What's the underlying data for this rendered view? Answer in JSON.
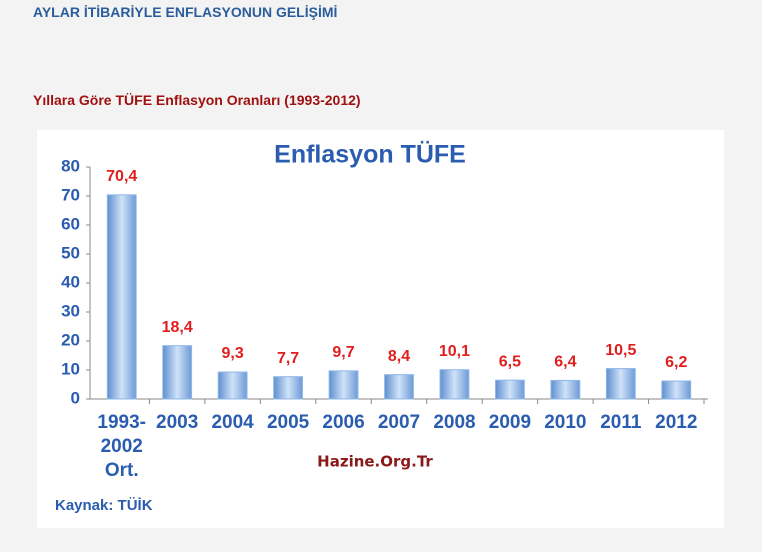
{
  "page": {
    "heading": "AYLAR İTİBARİYLE ENFLASYONUN GELİŞİMİ",
    "subheading": "Yıllara Göre TÜFE Enflasyon Oranları (1993-2012)"
  },
  "chart_data": {
    "type": "bar",
    "title": "Enflasyon TÜFE",
    "categories": [
      "1993-2002 Ort.",
      "2003",
      "2004",
      "2005",
      "2006",
      "2007",
      "2008",
      "2009",
      "2010",
      "2011",
      "2012"
    ],
    "values": [
      70.4,
      18.4,
      9.3,
      7.7,
      9.7,
      8.4,
      10.1,
      6.5,
      6.4,
      10.5,
      6.2
    ],
    "value_labels": [
      "70,4",
      "18,4",
      "9,3",
      "7,7",
      "9,7",
      "8,4",
      "10,1",
      "6,5",
      "6,4",
      "10,5",
      "6,2"
    ],
    "color": "#8fb8e8",
    "ylim": [
      0,
      80
    ],
    "yticks": [
      0,
      10,
      20,
      30,
      40,
      50,
      60,
      70,
      80
    ],
    "grid": false,
    "watermark": "Hazine.Org.Tr",
    "source": "Kaynak: TÜİK"
  }
}
